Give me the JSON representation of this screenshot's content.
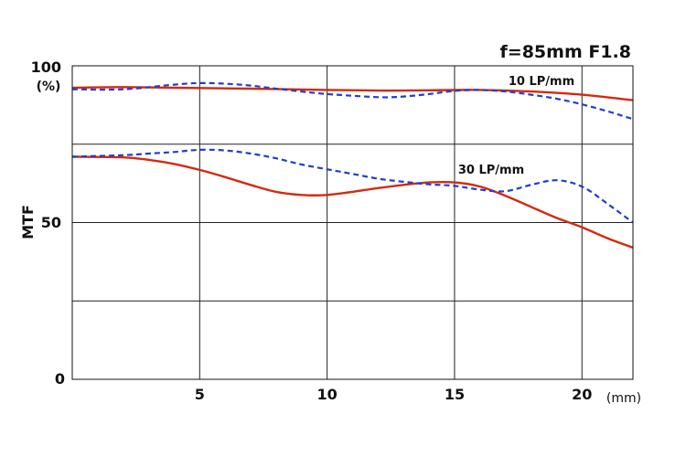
{
  "chart_data": {
    "type": "line",
    "title": "f=85mm F1.8",
    "ylabel": "MTF",
    "y_unit": "(%)",
    "x_unit": "(mm)",
    "xlim": [
      0,
      22
    ],
    "ylim": [
      0,
      100
    ],
    "x_ticks": [
      5,
      10,
      15,
      20
    ],
    "x_tick_labels": [
      "5",
      "10",
      "15",
      "20"
    ],
    "y_ticks": [
      0,
      50,
      100
    ],
    "y_tick_labels": [
      "0",
      "50",
      "100"
    ],
    "grid_x": [
      5,
      10,
      15,
      20
    ],
    "grid_y": [
      25,
      50,
      75
    ],
    "grid": true,
    "annotations": [
      {
        "text": "10 LP/mm",
        "x": 17.9,
        "y": 92
      },
      {
        "text": "30 LP/mm",
        "x": 16.0,
        "y": 67
      }
    ],
    "series": [
      {
        "group": "10 LP/mm",
        "style": "solid",
        "color": "#d42a10",
        "x": [
          0,
          2,
          4,
          6,
          8,
          10,
          12,
          14,
          16,
          18,
          20,
          22
        ],
        "y": [
          93,
          93.2,
          93,
          92.8,
          92.6,
          92.3,
          92.1,
          92.2,
          92.3,
          91.8,
          90.8,
          89
        ]
      },
      {
        "group": "10 LP/mm",
        "style": "dashed",
        "color": "#1f3fd0",
        "x": [
          0,
          2,
          4,
          5,
          6,
          7,
          8,
          9,
          10,
          12,
          13,
          14,
          15,
          16,
          17,
          18,
          19,
          20,
          21,
          22
        ],
        "y": [
          92.5,
          92.5,
          94,
          94.5,
          94.3,
          93.7,
          92.7,
          91.8,
          91,
          90,
          90.2,
          91,
          92,
          92.3,
          91.8,
          90.8,
          89.5,
          87.7,
          85.5,
          83
        ]
      },
      {
        "group": "30 LP/mm",
        "style": "solid",
        "color": "#d42a10",
        "x": [
          0,
          2,
          3,
          4,
          5,
          6,
          7,
          8,
          9,
          10,
          11,
          12,
          13,
          14,
          15,
          16,
          17,
          18,
          19,
          20,
          21,
          22
        ],
        "y": [
          71,
          70.8,
          70,
          68.7,
          66.8,
          64.5,
          62,
          59.8,
          58.8,
          58.8,
          59.8,
          61,
          62,
          62.8,
          62.8,
          61.5,
          58.5,
          55,
          51.5,
          48.5,
          45,
          42
        ]
      },
      {
        "group": "30 LP/mm",
        "style": "dashed",
        "color": "#1f3fd0",
        "x": [
          0,
          2,
          3,
          4,
          5,
          6,
          7,
          8,
          9,
          10,
          11,
          12,
          13,
          14,
          15,
          16,
          17,
          18,
          19,
          20,
          21,
          22
        ],
        "y": [
          71,
          71.5,
          72,
          72.5,
          73.2,
          73,
          72,
          70.5,
          68.5,
          67,
          65.5,
          64,
          63,
          62.2,
          61.7,
          60.5,
          60,
          62,
          63.5,
          61.5,
          56,
          50
        ]
      }
    ]
  }
}
